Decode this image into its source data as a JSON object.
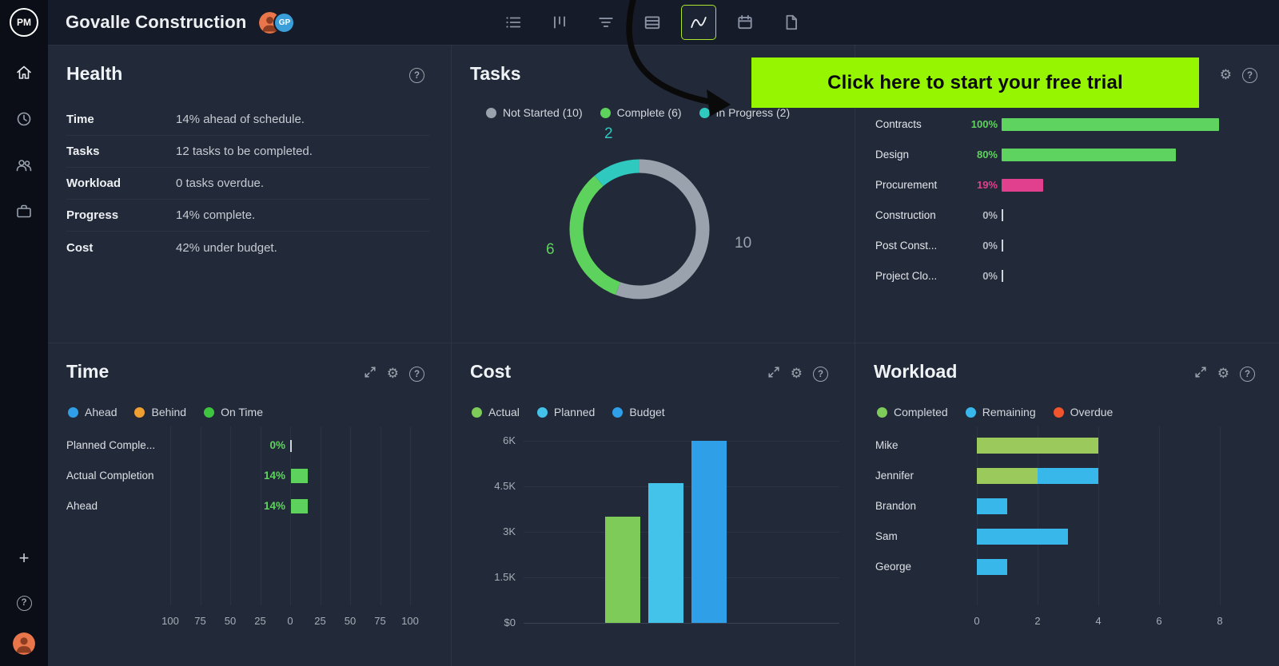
{
  "topbar": {
    "title": "Govalle Construction",
    "avatar_initials": "GP",
    "tools": [
      "list",
      "board",
      "filter",
      "table",
      "chart",
      "calendar",
      "report"
    ],
    "active_tool": "chart"
  },
  "sidebar": {
    "logo": "PM"
  },
  "banner": {
    "text": "Click here to start your free trial"
  },
  "icons": {
    "gear": "⚙",
    "help": "?",
    "plus": "+"
  },
  "panels": {
    "health": {
      "title": "Health",
      "rows": [
        {
          "label": "Time",
          "value": "14% ahead of schedule."
        },
        {
          "label": "Tasks",
          "value": "12 tasks to be completed."
        },
        {
          "label": "Workload",
          "value": "0 tasks overdue."
        },
        {
          "label": "Progress",
          "value": "14% complete."
        },
        {
          "label": "Cost",
          "value": "42% under budget."
        }
      ]
    },
    "tasks": {
      "title": "Tasks"
    },
    "time": {
      "title": "Time"
    },
    "cost": {
      "title": "Cost"
    },
    "workload": {
      "title": "Workload"
    }
  },
  "chart_data": [
    {
      "id": "tasks-donut",
      "type": "pie",
      "title": "Tasks",
      "total": 18,
      "legend": [
        {
          "label": "Not Started (10)",
          "color": "#9aa3ad"
        },
        {
          "label": "Complete (6)",
          "color": "#5dd25d"
        },
        {
          "label": "In Progress (2)",
          "color": "#2fc9bf"
        }
      ],
      "slices": [
        {
          "name": "Not Started",
          "value": 10,
          "label": "10",
          "color": "#9aa3ad"
        },
        {
          "name": "Complete",
          "value": 6,
          "label": "6",
          "color": "#5dd25d"
        },
        {
          "name": "In Progress",
          "value": 2,
          "label": "2",
          "color": "#2fc9bf"
        }
      ]
    },
    {
      "id": "phases",
      "type": "bar",
      "orientation": "horizontal",
      "xlim": [
        0,
        100
      ],
      "categories": [
        "Contracts",
        "Design",
        "Procurement",
        "Construction",
        "Post Const...",
        "Project Clo..."
      ],
      "values": [
        100,
        80,
        19,
        0,
        0,
        0
      ],
      "value_labels": [
        "100%",
        "80%",
        "19%",
        "0%",
        "0%",
        "0%"
      ],
      "bar_colors": [
        "#5fd35f",
        "#5fd35f",
        "#e0408e",
        "",
        "",
        ""
      ],
      "label_colors": [
        "#5fd35f",
        "#5fd35f",
        "#e0408e",
        "#b4bac2",
        "#b4bac2",
        "#b4bac2"
      ]
    },
    {
      "id": "time-chart",
      "type": "bar",
      "orientation": "horizontal",
      "xlim": [
        -100,
        100
      ],
      "legend": [
        {
          "label": "Ahead",
          "color": "#2f9fe8"
        },
        {
          "label": "Behind",
          "color": "#f0a030"
        },
        {
          "label": "On Time",
          "color": "#3fc43f"
        }
      ],
      "categories": [
        "Planned Comple...",
        "Actual Completion",
        "Ahead"
      ],
      "values": [
        0,
        14,
        14
      ],
      "value_labels": [
        "0%",
        "14%",
        "14%"
      ],
      "value_label_color": "#5fd35f",
      "bar_color": "#5dd25d",
      "axis_ticks": [
        -100,
        -75,
        -50,
        -25,
        0,
        25,
        50,
        75,
        100
      ],
      "axis_tick_labels": [
        "100",
        "75",
        "50",
        "25",
        "0",
        "25",
        "50",
        "75",
        "100"
      ]
    },
    {
      "id": "cost-chart",
      "type": "bar",
      "ylim": [
        0,
        6000
      ],
      "legend": [
        {
          "label": "Actual",
          "color": "#7ecb5a"
        },
        {
          "label": "Planned",
          "color": "#43c3ea"
        },
        {
          "label": "Budget",
          "color": "#2f9fe8"
        }
      ],
      "categories": [
        "Actual",
        "Planned",
        "Budget"
      ],
      "values": [
        3500,
        4600,
        6000
      ],
      "bar_colors": [
        "#7ecb5a",
        "#43c3ea",
        "#2f9fe8"
      ],
      "yticks": [
        0,
        1500,
        3000,
        4500,
        6000
      ],
      "ytick_labels": [
        "$0",
        "1.5K",
        "3K",
        "4.5K",
        "6K"
      ]
    },
    {
      "id": "workload-chart",
      "type": "bar",
      "stacked": true,
      "orientation": "horizontal",
      "xlim": [
        0,
        8
      ],
      "legend": [
        {
          "label": "Completed",
          "color": "#7ecb5a"
        },
        {
          "label": "Remaining",
          "color": "#38b8ea"
        },
        {
          "label": "Overdue",
          "color": "#f2552c"
        }
      ],
      "categories": [
        "Mike",
        "Jennifer",
        "Brandon",
        "Sam",
        "George"
      ],
      "series": [
        {
          "name": "Completed",
          "color": "#9bc95b",
          "values": [
            4,
            2,
            0,
            0,
            0
          ]
        },
        {
          "name": "Remaining",
          "color": "#38b8ea",
          "values": [
            0,
            2,
            1,
            3,
            1
          ]
        },
        {
          "name": "Overdue",
          "color": "#f2552c",
          "values": [
            0,
            0,
            0,
            0,
            0
          ]
        }
      ],
      "xticks": [
        0,
        2,
        4,
        6,
        8
      ],
      "xtick_labels": [
        "0",
        "2",
        "4",
        "6",
        "8"
      ]
    }
  ]
}
